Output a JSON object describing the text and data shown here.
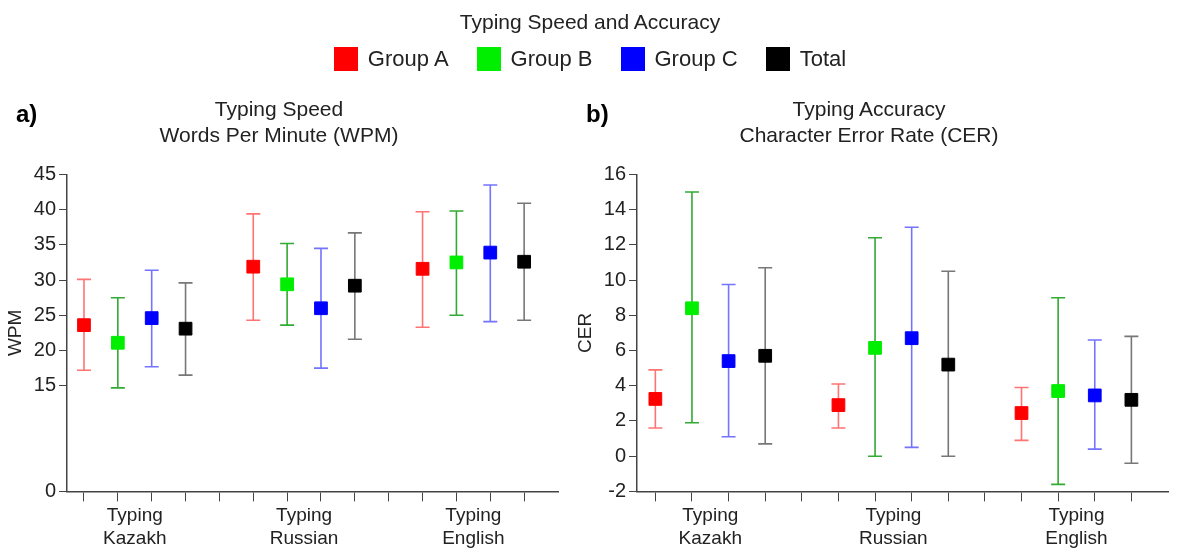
{
  "chart_data": [
    {
      "type": "scatter",
      "title": "Typing Speed",
      "subtitle": "Words Per Minute (WPM)",
      "ylabel": "WPM",
      "annotations": [
        "a)",
        "Typing Speed and Accuracy"
      ],
      "legend": "top",
      "marker": "square",
      "grid": false,
      "categories": [
        "Typing Kazakh",
        "Typing Russian",
        "Typing English"
      ],
      "ylim": [
        0,
        45
      ],
      "yticks": [
        0,
        15,
        20,
        25,
        30,
        35,
        40,
        45
      ],
      "series": [
        {
          "name": "Group A",
          "color": "#ff0000",
          "values": [
            23.6,
            31.9,
            31.6
          ],
          "errors": [
            [
              17.2,
              30.1
            ],
            [
              24.3,
              39.4
            ],
            [
              23.3,
              39.7
            ]
          ]
        },
        {
          "name": "Group B",
          "color": "#00ee00",
          "values": [
            21.1,
            29.4,
            32.5
          ],
          "errors": [
            [
              14.7,
              27.5
            ],
            [
              23.6,
              35.2
            ],
            [
              25.0,
              39.8
            ]
          ]
        },
        {
          "name": "Group C",
          "color": "#0000ff",
          "values": [
            24.6,
            26.0,
            33.9
          ],
          "errors": [
            [
              17.7,
              31.4
            ],
            [
              17.5,
              34.5
            ],
            [
              24.1,
              43.5
            ]
          ]
        },
        {
          "name": "Total",
          "color": "#000000",
          "values": [
            23.1,
            29.2,
            32.6
          ],
          "errors": [
            [
              16.5,
              29.6
            ],
            [
              21.6,
              36.7
            ],
            [
              24.3,
              40.9
            ]
          ]
        }
      ]
    },
    {
      "type": "scatter",
      "title": "Typing Accuracy",
      "subtitle": "Character Error Rate (CER)",
      "ylabel": "CER",
      "annotations": [
        "b)"
      ],
      "marker": "square",
      "grid": false,
      "categories": [
        "Typing Kazakh",
        "Typing Russian",
        "Typing English"
      ],
      "ylim": [
        -2,
        16
      ],
      "yticks": [
        -2,
        0,
        2,
        4,
        6,
        8,
        10,
        12,
        14,
        16
      ],
      "series": [
        {
          "color": "#ff0000",
          "values": [
            3.25,
            2.9,
            2.45
          ],
          "errors": [
            [
              1.6,
              4.9
            ],
            [
              1.6,
              4.1
            ],
            [
              0.9,
              3.9
            ]
          ]
        },
        {
          "color": "#00ee00",
          "values": [
            8.4,
            6.15,
            3.7
          ],
          "errors": [
            [
              1.9,
              15.0
            ],
            [
              0.0,
              12.4
            ],
            [
              -1.6,
              9.0
            ]
          ]
        },
        {
          "color": "#0000ff",
          "values": [
            5.4,
            6.7,
            3.45
          ],
          "errors": [
            [
              1.1,
              9.75
            ],
            [
              0.5,
              13.0
            ],
            [
              0.4,
              6.6
            ]
          ]
        },
        {
          "color": "#000000",
          "values": [
            5.7,
            5.2,
            3.2
          ],
          "errors": [
            [
              0.7,
              10.7
            ],
            [
              0.0,
              10.5
            ],
            [
              -0.4,
              6.8
            ]
          ]
        }
      ]
    }
  ]
}
